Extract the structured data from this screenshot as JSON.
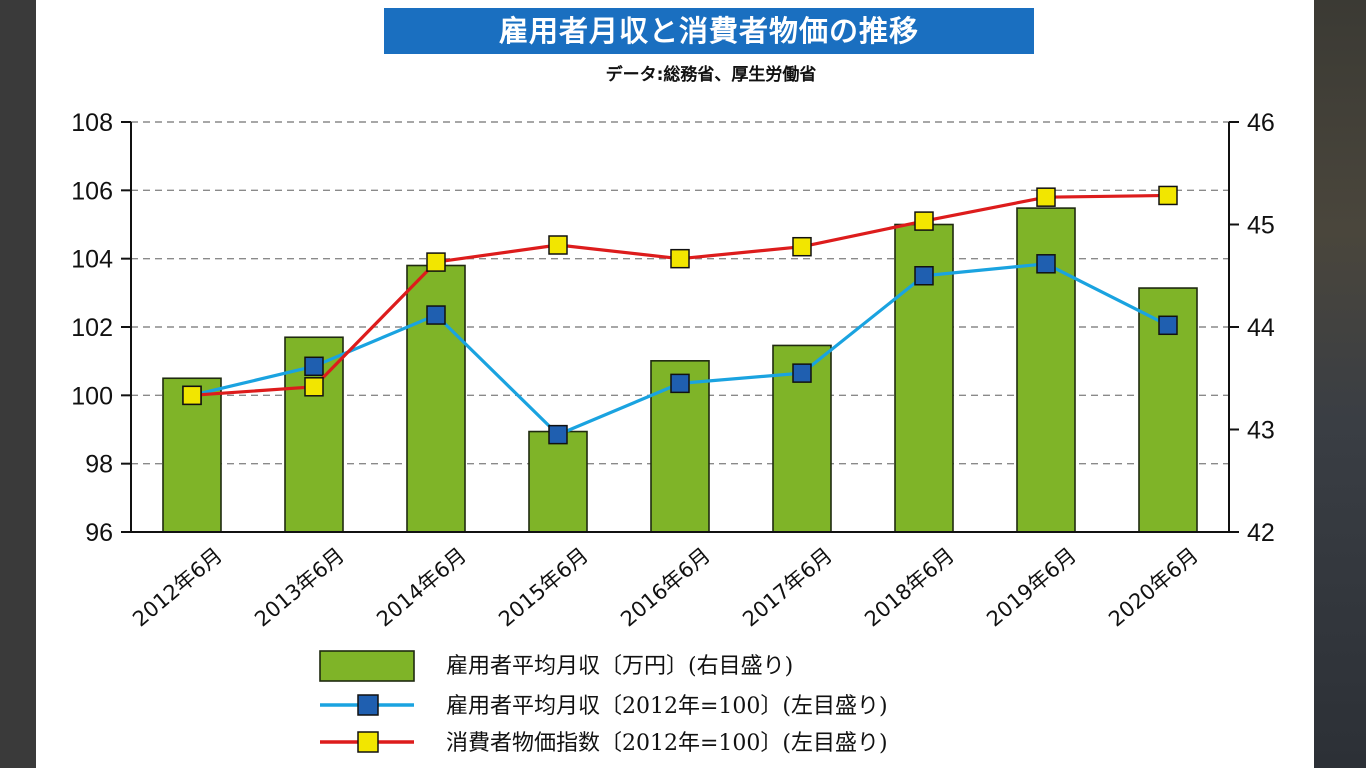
{
  "header": {
    "title": "雇用者月収と消費者物価の推移",
    "source": "データ:総務省、厚生労働省"
  },
  "chart_data": {
    "type": "bar",
    "categories": [
      "2012年6月",
      "2013年6月",
      "2014年6月",
      "2015年6月",
      "2016年6月",
      "2017年6月",
      "2018年6月",
      "2019年6月",
      "2020年6月"
    ],
    "left_axis": {
      "min": 96,
      "max": 108,
      "ticks": [
        96,
        98,
        100,
        102,
        104,
        106,
        108
      ]
    },
    "right_axis": {
      "min": 42,
      "max": 46,
      "ticks": [
        42,
        43,
        44,
        45,
        46
      ]
    },
    "series": [
      {
        "name": "雇用者平均月収〔万円〕(右目盛り)",
        "type": "bar",
        "axis": "right",
        "color": "#7fb428",
        "values": [
          43.5,
          43.9,
          44.6,
          42.98,
          43.67,
          43.82,
          45.0,
          45.16,
          44.38
        ]
      },
      {
        "name": "雇用者平均月収〔2012年=100〕(左目盛り)",
        "type": "line",
        "axis": "left",
        "color": "#1aa3e0",
        "marker_color": "#1f5fb0",
        "values": [
          100.0,
          100.85,
          102.35,
          98.85,
          100.35,
          100.65,
          103.5,
          103.85,
          102.05
        ]
      },
      {
        "name": "消費者物価指数〔2012年=100〕(左目盛り)",
        "type": "line",
        "axis": "left",
        "color": "#dd1c1c",
        "marker_color": "#f2e600",
        "values": [
          100.0,
          100.25,
          103.9,
          104.4,
          104.0,
          104.35,
          105.1,
          105.8,
          105.85
        ]
      }
    ],
    "grid": true
  }
}
